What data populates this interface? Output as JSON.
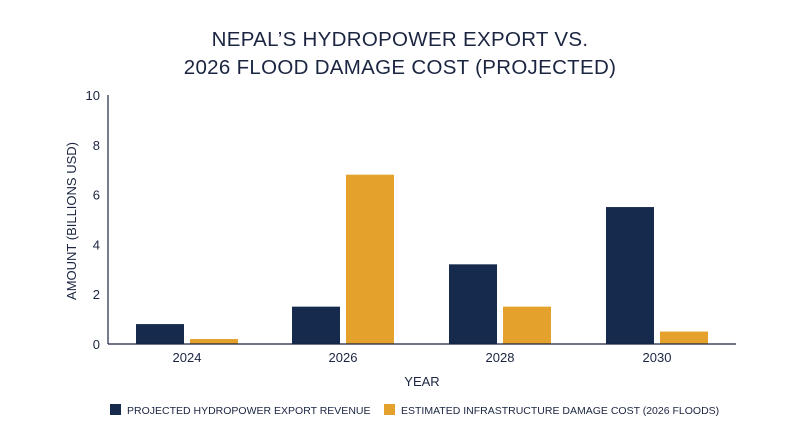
{
  "chart_data": {
    "type": "bar",
    "title_lines": [
      "NEPAL’S HYDROPOWER EXPORT VS.",
      "2026 FLOOD DAMAGE COST (PROJECTED)"
    ],
    "xlabel": "YEAR",
    "ylabel": "AMOUNT (BILLIONS USD)",
    "categories": [
      "2024",
      "2026",
      "2028",
      "2030"
    ],
    "ylim": [
      0,
      10
    ],
    "yticks": [
      "0",
      "2",
      "4",
      "6",
      "8",
      "10"
    ],
    "ytick_values": [
      0,
      2,
      4,
      6,
      8,
      10
    ],
    "grid": false,
    "legend_position": "bottom",
    "series": [
      {
        "name": "PROJECTED HYDROPOWER EXPORT REVENUE",
        "color": "#162a4d",
        "values": [
          0.8,
          1.5,
          3.2,
          5.5
        ]
      },
      {
        "name": "ESTIMATED INFRASTRUCTURE DAMAGE COST (2026 FLOODS)",
        "color": "#e4a12b",
        "values": [
          0.2,
          6.8,
          1.5,
          0.5
        ]
      }
    ]
  }
}
